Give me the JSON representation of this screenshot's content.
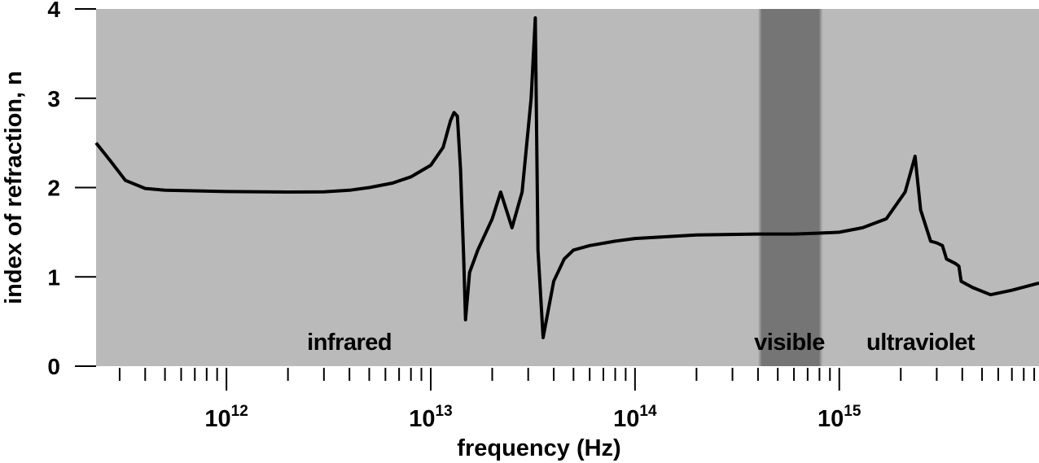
{
  "chart_data": {
    "type": "line",
    "title": "",
    "xlabel": "frequency (Hz)",
    "ylabel": "index of refraction, n",
    "x_scale": "log",
    "xlim": [
      230000000000.0,
      9500000000000000.0
    ],
    "ylim": [
      0,
      4
    ],
    "x_major_ticks": [
      {
        "base": "10",
        "exp": "12",
        "value": 1000000000000.0
      },
      {
        "base": "10",
        "exp": "13",
        "value": 10000000000000.0
      },
      {
        "base": "10",
        "exp": "14",
        "value": 100000000000000.0
      },
      {
        "base": "10",
        "exp": "15",
        "value": 1000000000000000.0
      }
    ],
    "y_ticks": [
      "0",
      "1",
      "2",
      "3",
      "4"
    ],
    "grid": false,
    "background_color": "#bababa",
    "line_color": "#000000",
    "visible_band": {
      "label": "visible",
      "range": [
        400000000000000.0,
        830000000000000.0
      ],
      "color": "#757575"
    },
    "region_labels": [
      {
        "text": "infrared",
        "x": 4000000000000.0
      },
      {
        "text": "visible",
        "x": 570000000000000.0
      },
      {
        "text": "ultraviolet",
        "x": 2500000000000000.0
      }
    ],
    "series": [
      {
        "points": [
          [
            230000000000.0,
            2.5
          ],
          [
            270000000000.0,
            2.3
          ],
          [
            320000000000.0,
            2.08
          ],
          [
            400000000000.0,
            1.99
          ],
          [
            500000000000.0,
            1.97
          ],
          [
            1000000000000.0,
            1.955
          ],
          [
            2000000000000.0,
            1.95
          ],
          [
            3000000000000.0,
            1.952
          ],
          [
            4000000000000.0,
            1.97
          ],
          [
            5000000000000.0,
            2.0
          ],
          [
            6500000000000.0,
            2.05
          ],
          [
            8000000000000.0,
            2.12
          ],
          [
            10000000000000.0,
            2.25
          ],
          [
            11500000000000.0,
            2.45
          ],
          [
            12500000000000.0,
            2.75
          ],
          [
            13000000000000.0,
            2.84
          ],
          [
            13500000000000.0,
            2.8
          ],
          [
            14000000000000.0,
            2.2
          ],
          [
            14500000000000.0,
            1.2
          ],
          [
            14800000000000.0,
            0.52
          ],
          [
            15500000000000.0,
            1.05
          ],
          [
            17000000000000.0,
            1.3
          ],
          [
            20000000000000.0,
            1.65
          ],
          [
            22000000000000.0,
            1.95
          ],
          [
            25000000000000.0,
            1.55
          ],
          [
            28000000000000.0,
            1.95
          ],
          [
            31000000000000.0,
            3.0
          ],
          [
            32500000000000.0,
            3.9
          ],
          [
            33500000000000.0,
            1.3
          ],
          [
            35500000000000.0,
            0.32
          ],
          [
            40000000000000.0,
            0.95
          ],
          [
            45000000000000.0,
            1.2
          ],
          [
            50000000000000.0,
            1.3
          ],
          [
            60000000000000.0,
            1.35
          ],
          [
            80000000000000.0,
            1.4
          ],
          [
            100000000000000.0,
            1.43
          ],
          [
            200000000000000.0,
            1.47
          ],
          [
            400000000000000.0,
            1.48
          ],
          [
            600000000000000.0,
            1.48
          ],
          [
            800000000000000.0,
            1.49
          ],
          [
            1000000000000000.0,
            1.5
          ],
          [
            1300000000000000.0,
            1.55
          ],
          [
            1700000000000000.0,
            1.65
          ],
          [
            2100000000000000.0,
            1.95
          ],
          [
            2350000000000000.0,
            2.35
          ],
          [
            2500000000000000.0,
            1.75
          ],
          [
            2800000000000000.0,
            1.4
          ],
          [
            3000000000000000.0,
            1.38
          ],
          [
            3200000000000000.0,
            1.35
          ],
          [
            3350000000000000.0,
            1.2
          ],
          [
            3700000000000000.0,
            1.15
          ],
          [
            3850000000000000.0,
            1.12
          ],
          [
            3950000000000000.0,
            0.95
          ],
          [
            4500000000000000.0,
            0.88
          ],
          [
            5500000000000000.0,
            0.8
          ],
          [
            7000000000000000.0,
            0.85
          ],
          [
            9500000000000000.0,
            0.93
          ]
        ]
      }
    ]
  }
}
